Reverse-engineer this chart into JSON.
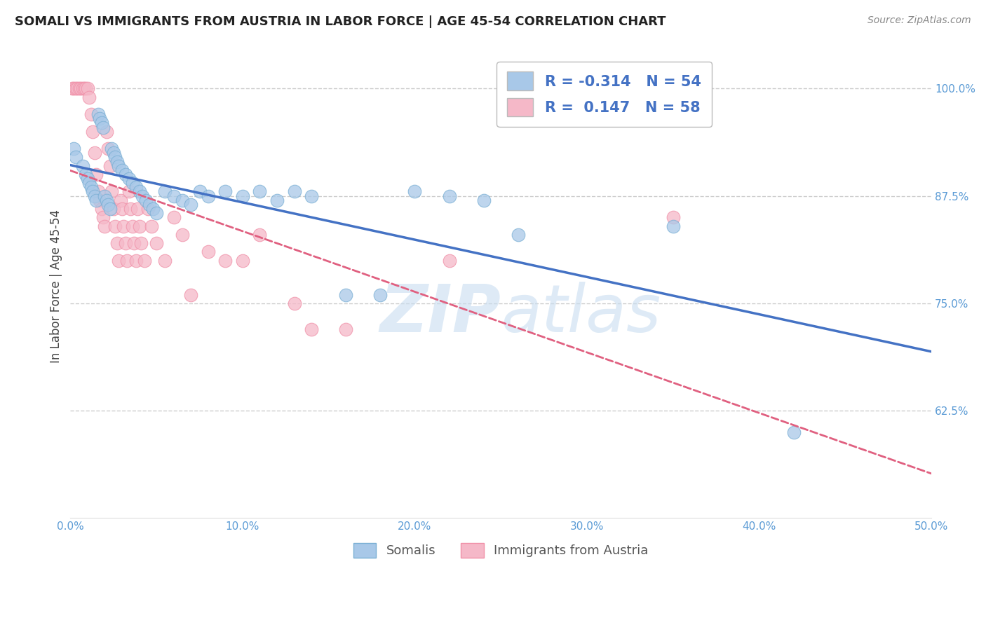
{
  "title": "SOMALI VS IMMIGRANTS FROM AUSTRIA IN LABOR FORCE | AGE 45-54 CORRELATION CHART",
  "source": "Source: ZipAtlas.com",
  "ylabel": "In Labor Force | Age 45-54",
  "xlim": [
    0.0,
    0.5
  ],
  "ylim": [
    0.5,
    1.04
  ],
  "xticks": [
    0.0,
    0.1,
    0.2,
    0.3,
    0.4,
    0.5
  ],
  "xticklabels": [
    "0.0%",
    "10.0%",
    "20.0%",
    "30.0%",
    "40.0%",
    "50.0%"
  ],
  "yticks": [
    0.625,
    0.75,
    0.875,
    1.0
  ],
  "yticklabels": [
    "62.5%",
    "75.0%",
    "87.5%",
    "100.0%"
  ],
  "legend_labels": [
    "Somalis",
    "Immigrants from Austria"
  ],
  "blue_color": "#a8c8e8",
  "pink_color": "#f5b8c8",
  "blue_edge_color": "#7aafd4",
  "pink_edge_color": "#f090a8",
  "blue_line_color": "#4472c4",
  "pink_line_color": "#e06080",
  "R_blue": -0.314,
  "N_blue": 54,
  "R_pink": 0.147,
  "N_pink": 58,
  "blue_scatter_x": [
    0.002,
    0.003,
    0.007,
    0.009,
    0.01,
    0.011,
    0.012,
    0.013,
    0.014,
    0.015,
    0.016,
    0.017,
    0.018,
    0.019,
    0.02,
    0.021,
    0.022,
    0.023,
    0.024,
    0.025,
    0.026,
    0.027,
    0.028,
    0.03,
    0.032,
    0.034,
    0.036,
    0.038,
    0.04,
    0.042,
    0.044,
    0.046,
    0.048,
    0.05,
    0.055,
    0.06,
    0.065,
    0.07,
    0.075,
    0.08,
    0.09,
    0.1,
    0.11,
    0.12,
    0.13,
    0.14,
    0.16,
    0.18,
    0.2,
    0.22,
    0.24,
    0.26,
    0.35,
    0.42
  ],
  "blue_scatter_y": [
    0.93,
    0.92,
    0.91,
    0.9,
    0.895,
    0.89,
    0.885,
    0.88,
    0.875,
    0.87,
    0.97,
    0.965,
    0.96,
    0.955,
    0.875,
    0.87,
    0.865,
    0.86,
    0.93,
    0.925,
    0.92,
    0.915,
    0.91,
    0.905,
    0.9,
    0.895,
    0.89,
    0.885,
    0.88,
    0.875,
    0.87,
    0.865,
    0.86,
    0.855,
    0.88,
    0.875,
    0.87,
    0.865,
    0.88,
    0.875,
    0.88,
    0.875,
    0.88,
    0.87,
    0.88,
    0.875,
    0.76,
    0.76,
    0.88,
    0.875,
    0.87,
    0.83,
    0.84,
    0.6
  ],
  "pink_scatter_x": [
    0.001,
    0.002,
    0.003,
    0.004,
    0.005,
    0.006,
    0.007,
    0.008,
    0.009,
    0.01,
    0.011,
    0.012,
    0.013,
    0.014,
    0.015,
    0.016,
    0.017,
    0.018,
    0.019,
    0.02,
    0.021,
    0.022,
    0.023,
    0.024,
    0.025,
    0.026,
    0.027,
    0.028,
    0.029,
    0.03,
    0.031,
    0.032,
    0.033,
    0.034,
    0.035,
    0.036,
    0.037,
    0.038,
    0.039,
    0.04,
    0.041,
    0.043,
    0.045,
    0.047,
    0.05,
    0.055,
    0.06,
    0.065,
    0.07,
    0.08,
    0.09,
    0.1,
    0.11,
    0.13,
    0.14,
    0.16,
    0.22,
    0.35
  ],
  "pink_scatter_y": [
    1.0,
    1.0,
    1.0,
    1.0,
    1.0,
    1.0,
    1.0,
    1.0,
    1.0,
    1.0,
    0.99,
    0.97,
    0.95,
    0.925,
    0.9,
    0.88,
    0.87,
    0.86,
    0.85,
    0.84,
    0.95,
    0.93,
    0.91,
    0.88,
    0.86,
    0.84,
    0.82,
    0.8,
    0.87,
    0.86,
    0.84,
    0.82,
    0.8,
    0.88,
    0.86,
    0.84,
    0.82,
    0.8,
    0.86,
    0.84,
    0.82,
    0.8,
    0.86,
    0.84,
    0.82,
    0.8,
    0.85,
    0.83,
    0.76,
    0.81,
    0.8,
    0.8,
    0.83,
    0.75,
    0.72,
    0.72,
    0.8,
    0.85
  ],
  "watermark_zip": "ZIP",
  "watermark_atlas": "atlas",
  "background_color": "#ffffff",
  "grid_color": "#cccccc",
  "tick_color": "#5b9bd5",
  "spine_color": "#dddddd"
}
